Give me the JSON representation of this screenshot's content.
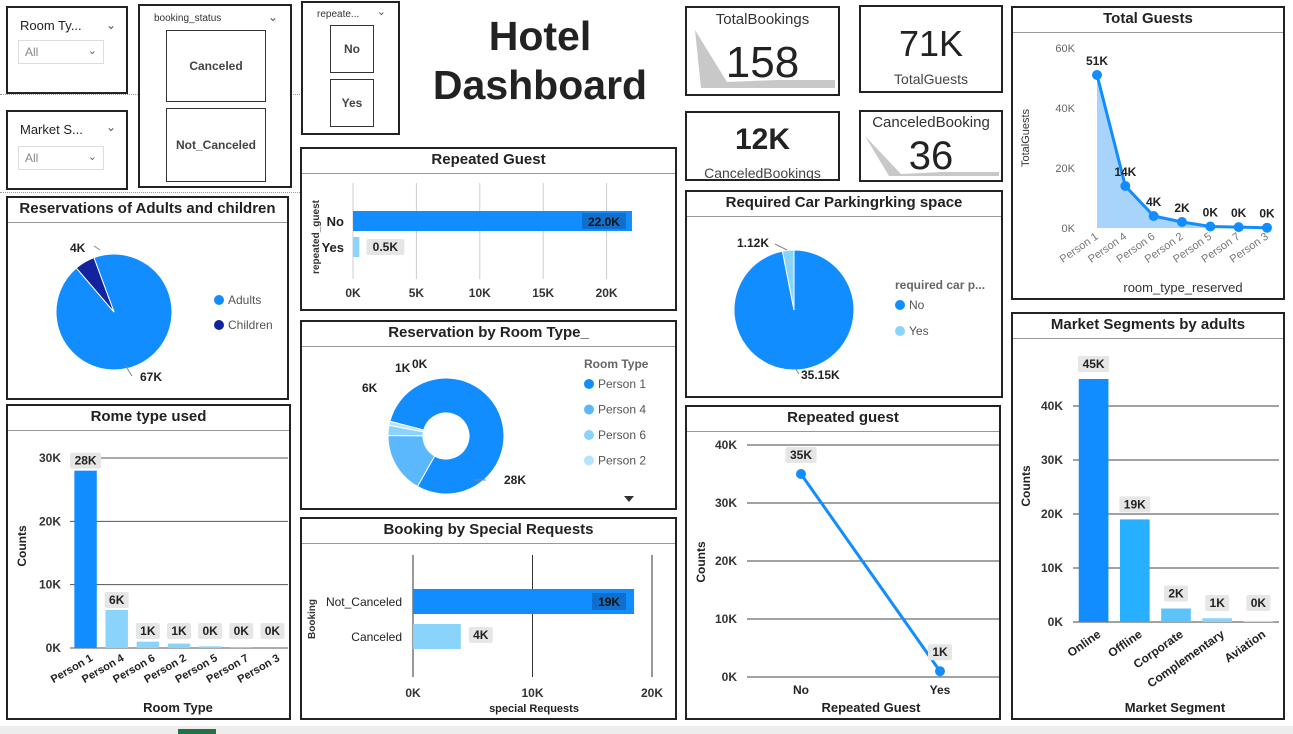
{
  "title": "Hotel Dashboard",
  "slicers": {
    "room_type": {
      "label": "Room Ty...",
      "value": "All"
    },
    "market_segment": {
      "label": "Market S...",
      "value": "All"
    },
    "booking_status": {
      "label": "booking_status",
      "options": [
        "Canceled",
        "Not_Canceled"
      ]
    },
    "repeated": {
      "label": "repeate...",
      "options": [
        "No",
        "Yes"
      ]
    }
  },
  "kpis": {
    "total_bookings": {
      "label": "TotalBookings",
      "value": "158"
    },
    "total_guests": {
      "label": "TotalGuests",
      "value": "71K"
    },
    "canceled_bookings": {
      "label": "CanceledBookings",
      "value": "12K"
    },
    "canceled_booking": {
      "label": "CanceledBooking",
      "value": "36"
    }
  },
  "chart_data": [
    {
      "id": "adults_children",
      "type": "pie",
      "title": "Reservations of Adults and children",
      "labels": [
        "Adults",
        "Children"
      ],
      "values": [
        67,
        4
      ],
      "data_labels": [
        "67K",
        "4K"
      ],
      "colors": [
        "#118DFF",
        "#12239E"
      ],
      "legend": "right"
    },
    {
      "id": "repeated_guest_bar",
      "type": "bar",
      "orientation": "horizontal",
      "title": "Repeated Guest",
      "ylabel": "repeated_guest",
      "categories": [
        "No",
        "Yes"
      ],
      "values": [
        22000,
        500
      ],
      "data_labels": [
        "22.0K",
        "0.5K"
      ],
      "xticks": [
        "0K",
        "5K",
        "10K",
        "15K",
        "20K"
      ],
      "xlim": [
        0,
        25000
      ],
      "colors": [
        "#118DFF",
        "#8AD4FB"
      ]
    },
    {
      "id": "car_parking",
      "type": "pie",
      "title": "Required Car Parkingrking space",
      "legend_title": "required car p...",
      "labels": [
        "No",
        "Yes"
      ],
      "values": [
        35.15,
        1.12
      ],
      "data_labels": [
        "35.15K",
        "1.12K"
      ],
      "colors": [
        "#118DFF",
        "#8AD4FB"
      ],
      "legend": "right"
    },
    {
      "id": "total_guests_area",
      "type": "area",
      "title": "Total Guests",
      "xlabel": "room_type_reserved",
      "ylabel": "TotalGuests",
      "categories": [
        "Person 1",
        "Person 4",
        "Person 6",
        "Person 2",
        "Person 5",
        "Person 7",
        "Person 3"
      ],
      "values": [
        51000,
        14000,
        4000,
        2000,
        500,
        300,
        100
      ],
      "data_labels": [
        "51K",
        "14K",
        "4K",
        "2K",
        "0K",
        "0K",
        "0K"
      ],
      "yticks": [
        "0K",
        "20K",
        "40K",
        "60K"
      ],
      "ylim": [
        0,
        60000
      ]
    },
    {
      "id": "room_type_donut",
      "type": "pie",
      "title": "Reservation by Room Type_",
      "legend_title": "Room Type",
      "labels": [
        "Person 1",
        "Person 4",
        "Person 6",
        "Person 2"
      ],
      "values": [
        28,
        6,
        1,
        0.4
      ],
      "data_labels": [
        "28K",
        "6K",
        "1K",
        "0K"
      ],
      "colors": [
        "#118DFF",
        "#5CB8FC",
        "#8AD4FB",
        "#B5E2FC"
      ],
      "legend": "right"
    },
    {
      "id": "room_type_used",
      "type": "bar",
      "title": "Rome type used",
      "xlabel": "Room Type",
      "ylabel": "Counts",
      "categories": [
        "Person 1",
        "Person 4",
        "Person 6",
        "Person 2",
        "Person 5",
        "Person 7",
        "Person 3"
      ],
      "values": [
        28000,
        6000,
        1000,
        700,
        265,
        158,
        7
      ],
      "data_labels": [
        "28K",
        "6K",
        "1K",
        "1K",
        "0K",
        "0K",
        "0K"
      ],
      "yticks": [
        "0K",
        "10K",
        "20K",
        "30K"
      ],
      "ylim": [
        0,
        30000
      ],
      "colors": [
        "#118DFF",
        "#8AD4FB",
        "#8AD4FB",
        "#8AD4FB",
        "#8AD4FB",
        "#8AD4FB",
        "#8AD4FB"
      ]
    },
    {
      "id": "special_requests",
      "type": "bar",
      "orientation": "horizontal",
      "title": "Booking by Special Requests",
      "xlabel": "special Requests",
      "ylabel": "Booking",
      "categories": [
        "Not_Canceled",
        "Canceled"
      ],
      "values": [
        18500,
        4000
      ],
      "data_labels": [
        "19K",
        "4K"
      ],
      "xticks": [
        "0K",
        "10K",
        "20K"
      ],
      "xlim": [
        0,
        20000
      ],
      "colors": [
        "#118DFF",
        "#8AD4FB"
      ]
    },
    {
      "id": "repeated_guest_line",
      "type": "line",
      "title": "Repeated guest",
      "xlabel": "Repeated Guest",
      "ylabel": "Counts",
      "categories": [
        "No",
        "Yes"
      ],
      "values": [
        35000,
        1000
      ],
      "data_labels": [
        "35K",
        "1K"
      ],
      "yticks": [
        "0K",
        "10K",
        "20K",
        "30K",
        "40K"
      ],
      "ylim": [
        0,
        40000
      ]
    },
    {
      "id": "market_segments",
      "type": "bar",
      "title": "Market Segments by adults",
      "xlabel": "Market Segment",
      "ylabel": "Counts",
      "categories": [
        "Online",
        "Offline",
        "Corporate",
        "Complementary",
        "Aviation"
      ],
      "values": [
        45000,
        19000,
        2500,
        700,
        200
      ],
      "data_labels": [
        "45K",
        "19K",
        "2K",
        "1K",
        "0K"
      ],
      "yticks": [
        "0K",
        "10K",
        "20K",
        "30K",
        "40K"
      ],
      "ylim": [
        0,
        50000
      ],
      "colors": [
        "#118DFF",
        "#27B0FF",
        "#5CC4FB",
        "#8AD4FB",
        "#B5E2FC"
      ]
    }
  ]
}
